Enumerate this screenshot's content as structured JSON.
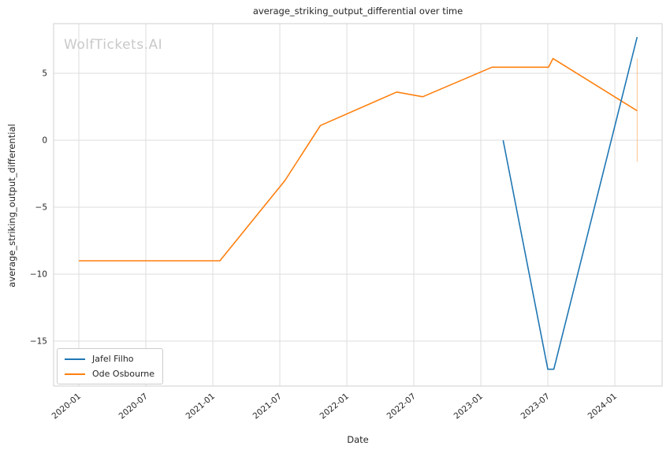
{
  "title": "average_striking_output_differential over time",
  "watermark": "WolfTickets.AI",
  "axes": {
    "xlabel": "Date",
    "ylabel": "average_striking_output_differential",
    "x_tick_labels": [
      "2020-01",
      "2020-07",
      "2021-01",
      "2021-07",
      "2022-01",
      "2022-07",
      "2023-01",
      "2023-07",
      "2024-01"
    ],
    "y_tick_values": [
      5,
      0,
      -5,
      -10,
      -15
    ]
  },
  "legend": {
    "position": "lower left",
    "items": [
      {
        "label": "Jafel Filho",
        "color": "#1f77b4"
      },
      {
        "label": "Ode Osbourne",
        "color": "#ff7f0e"
      }
    ]
  },
  "colors": {
    "grid": "#dcdcdc",
    "spine": "#cfcfcf",
    "text": "#262626",
    "watermark": "#c9c9c9",
    "background": "#ffffff"
  },
  "chart_data": {
    "type": "line",
    "title": "average_striking_output_differential over time",
    "xlabel": "Date",
    "ylabel": "average_striking_output_differential",
    "x_tick_labels": [
      "2020-01",
      "2020-07",
      "2021-01",
      "2021-07",
      "2022-01",
      "2022-07",
      "2023-01",
      "2023-07",
      "2024-01"
    ],
    "y_ticks": [
      5,
      0,
      -5,
      -10,
      -15
    ],
    "xlim": [
      "2019-11-01",
      "2024-05-07"
    ],
    "ylim": [
      -18.4,
      8.7
    ],
    "grid": true,
    "legend_position": "lower left",
    "series": [
      {
        "name": "Ode Osbourne",
        "color": "#ff7f0e",
        "points": [
          [
            "2020-01-01",
            -9.0
          ],
          [
            "2021-01-20",
            -9.0
          ],
          [
            "2021-07-15",
            -3.0
          ],
          [
            "2021-10-20",
            1.1
          ],
          [
            "2022-05-15",
            3.6
          ],
          [
            "2022-07-25",
            3.25
          ],
          [
            "2023-02-01",
            5.45
          ],
          [
            "2023-07-03",
            5.45
          ],
          [
            "2023-07-15",
            6.1
          ],
          [
            "2024-03-01",
            2.2
          ]
        ]
      },
      {
        "name": "Jafel Filho",
        "color": "#1f77b4",
        "points": [
          [
            "2023-03-01",
            0.0
          ],
          [
            "2023-07-01",
            -17.1
          ],
          [
            "2023-07-17",
            -17.1
          ],
          [
            "2024-03-01",
            7.7
          ]
        ]
      }
    ],
    "annotations": [
      {
        "type": "vertical-segment",
        "x": "2024-03-01",
        "y_from": -1.6,
        "y_to": 6.1,
        "color": "#ff7f0e",
        "opacity": 0.45,
        "width": 1
      }
    ]
  }
}
